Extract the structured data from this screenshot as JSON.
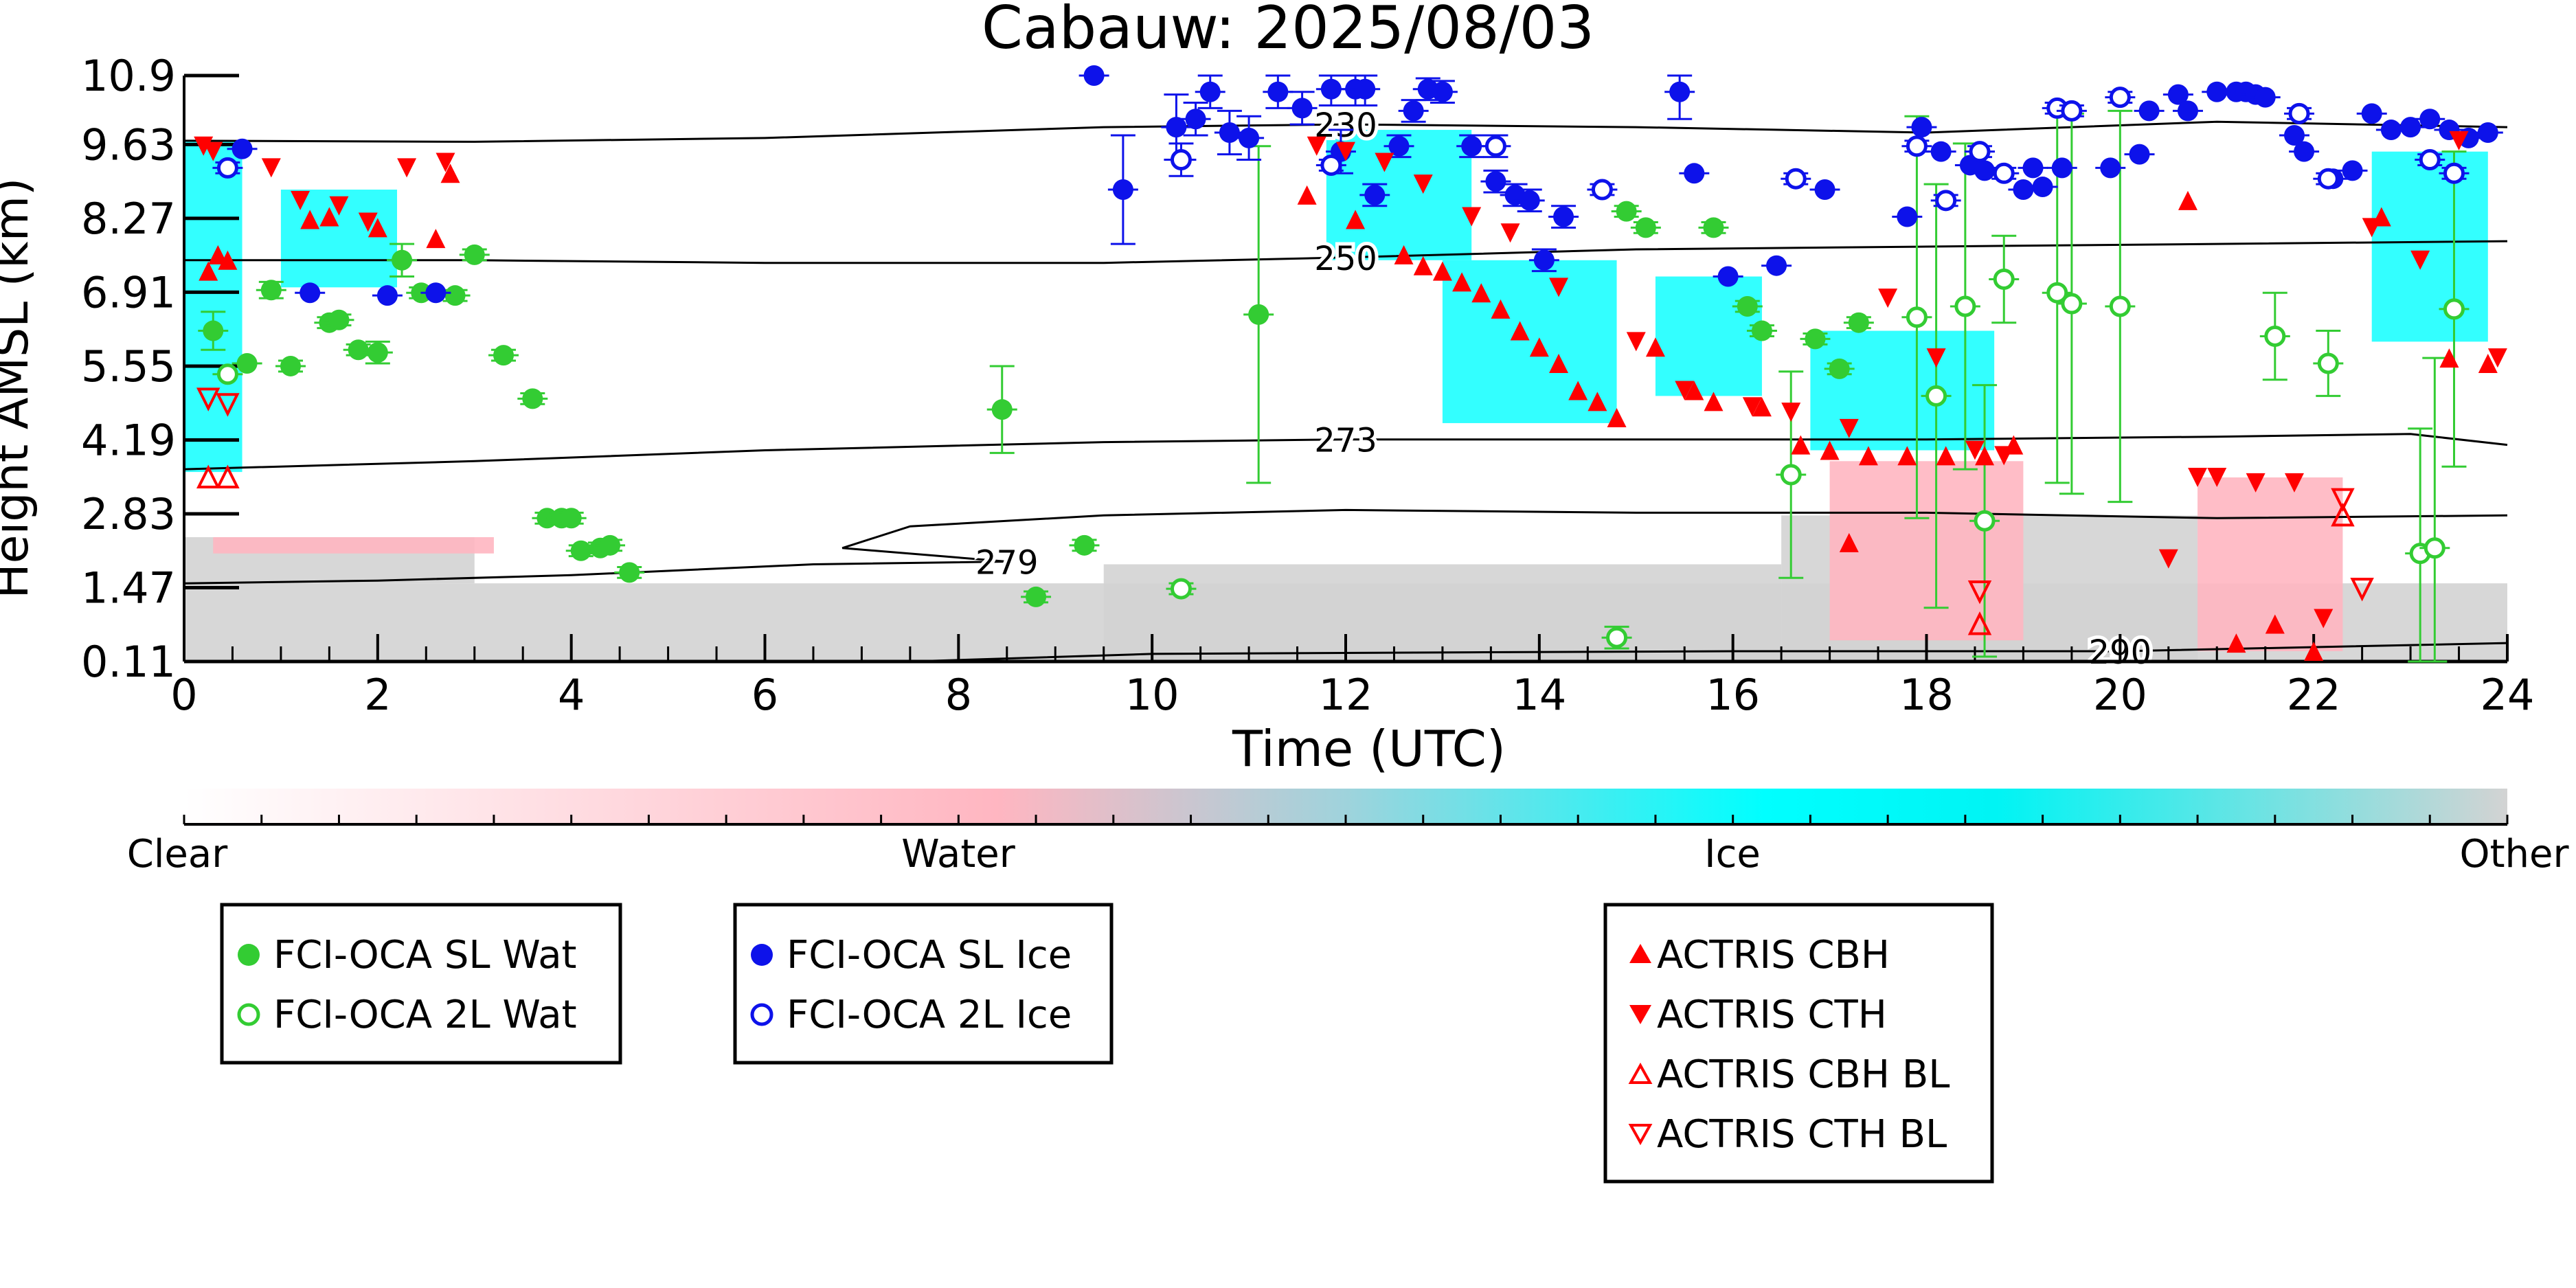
{
  "chart_data": {
    "type": "scatter",
    "title": "Cabauw: 2025/08/03",
    "xlabel": "Time (UTC)",
    "ylabel": "Height AMSL (km)",
    "xlim": [
      0,
      24
    ],
    "ylim": [
      0.11,
      10.9
    ],
    "x_ticks": [
      "0",
      "2",
      "4",
      "6",
      "8",
      "10",
      "12",
      "14",
      "16",
      "18",
      "20",
      "22",
      "24"
    ],
    "y_ticks": [
      "0.11",
      "1.47",
      "2.83",
      "4.19",
      "5.55",
      "6.91",
      "8.27",
      "9.63",
      "10.9"
    ],
    "colorbar": {
      "labels": [
        "Clear",
        "Water",
        "Ice",
        "Other"
      ],
      "colors": [
        "#ffffff",
        "#ffb6c1",
        "#00ffff",
        "#d3d3d3"
      ]
    },
    "contours": [
      {
        "label": "230",
        "points": [
          [
            0,
            9.7
          ],
          [
            3,
            9.68
          ],
          [
            6,
            9.75
          ],
          [
            9.5,
            9.95
          ],
          [
            12,
            10.0
          ],
          [
            15,
            9.95
          ],
          [
            18,
            9.85
          ],
          [
            21,
            10.05
          ],
          [
            24,
            9.95
          ]
        ]
      },
      {
        "label": "250",
        "points": [
          [
            0,
            7.5
          ],
          [
            3,
            7.5
          ],
          [
            6,
            7.45
          ],
          [
            9.5,
            7.45
          ],
          [
            12,
            7.55
          ],
          [
            15,
            7.7
          ],
          [
            18,
            7.75
          ],
          [
            21,
            7.8
          ],
          [
            24,
            7.85
          ]
        ]
      },
      {
        "label": "273",
        "points": [
          [
            0,
            3.65
          ],
          [
            3,
            3.8
          ],
          [
            6,
            4.0
          ],
          [
            9.5,
            4.15
          ],
          [
            12,
            4.2
          ],
          [
            15,
            4.2
          ],
          [
            18,
            4.2
          ],
          [
            21,
            4.25
          ],
          [
            23,
            4.3
          ],
          [
            24,
            4.1
          ]
        ]
      },
      {
        "label": "279",
        "points": [
          [
            0,
            1.55
          ],
          [
            2,
            1.6
          ],
          [
            4,
            1.7
          ],
          [
            6.5,
            1.9
          ],
          [
            8.5,
            1.95
          ],
          [
            6.8,
            2.2
          ],
          [
            7.5,
            2.6
          ],
          [
            9.5,
            2.8
          ],
          [
            12,
            2.9
          ],
          [
            15,
            2.85
          ],
          [
            18,
            2.85
          ],
          [
            21,
            2.75
          ],
          [
            24,
            2.8
          ]
        ]
      },
      {
        "label": "290",
        "points": [
          [
            7.5,
            0.11
          ],
          [
            10,
            0.25
          ],
          [
            13.3,
            0.28
          ],
          [
            16,
            0.3
          ],
          [
            20,
            0.3
          ],
          [
            24,
            0.45
          ]
        ]
      }
    ],
    "series": [
      {
        "name": "FCI-OCA SL Wat",
        "color": "#33cc33",
        "marker": "circle-filled",
        "x": [
          0.3,
          0.65,
          0.9,
          1.1,
          1.5,
          1.6,
          1.8,
          2.0,
          2.25,
          2.45,
          2.8,
          3.0,
          3.3,
          3.6,
          3.75,
          3.9,
          4.0,
          4.1,
          4.3,
          4.4,
          4.6,
          8.45,
          8.8,
          9.3,
          11.1,
          14.9,
          15.1,
          15.8,
          16.15,
          16.3,
          16.85,
          17.1,
          17.3
        ],
        "y": [
          6.2,
          5.6,
          6.95,
          5.55,
          6.35,
          6.4,
          5.85,
          5.8,
          7.5,
          6.9,
          6.85,
          7.6,
          5.75,
          4.95,
          2.75,
          2.75,
          2.75,
          2.15,
          2.2,
          2.25,
          1.75,
          4.75,
          1.3,
          2.25,
          6.5,
          8.4,
          8.1,
          8.1,
          6.65,
          6.2,
          6.05,
          5.5,
          6.35
        ],
        "yerr": [
          0.35,
          0,
          0.15,
          0.1,
          0.1,
          0.1,
          0.1,
          0.2,
          0.3,
          0.1,
          0.1,
          0.1,
          0.1,
          0.1,
          0.1,
          0.1,
          0.1,
          0.1,
          0.1,
          0.1,
          0.1,
          0.8,
          0.1,
          0.1,
          3.1,
          0.1,
          0.1,
          0.1,
          0.1,
          0.1,
          0.1,
          0.1,
          0.1
        ]
      },
      {
        "name": "FCI-OCA 2L Wat",
        "color": "#33cc33",
        "marker": "circle-open",
        "x": [
          0.45,
          10.3,
          14.8,
          16.6,
          17.9,
          18.1,
          18.4,
          18.6,
          18.8,
          19.35,
          19.5,
          20.0,
          21.6,
          22.15,
          23.1,
          23.25,
          23.45
        ],
        "y": [
          5.4,
          1.45,
          0.55,
          3.55,
          6.45,
          5.0,
          6.65,
          2.7,
          7.15,
          6.9,
          6.7,
          6.65,
          6.1,
          5.6,
          2.1,
          2.2,
          6.6
        ],
        "yerr": [
          0,
          0.1,
          0.2,
          1.9,
          3.7,
          3.9,
          3.0,
          2.5,
          0.8,
          3.5,
          3.5,
          3.6,
          0.8,
          0.6,
          2.3,
          3.5,
          2.9
        ]
      },
      {
        "name": "FCI-OCA SL Ice",
        "color": "#0d12ea",
        "marker": "circle-filled",
        "x": [
          0.6,
          1.3,
          2.1,
          2.6,
          9.4,
          9.7,
          10.25,
          10.45,
          10.6,
          10.8,
          11.0,
          11.3,
          11.55,
          11.85,
          11.95,
          12.1,
          12.2,
          12.3,
          12.55,
          12.7,
          12.85,
          13.0,
          13.3,
          13.55,
          13.75,
          13.9,
          14.05,
          14.25,
          15.45,
          15.6,
          15.95,
          16.45,
          16.95,
          17.8,
          17.95,
          18.15,
          18.45,
          18.6,
          19.0,
          19.1,
          19.2,
          19.4,
          19.9,
          20.2,
          20.3,
          20.6,
          20.7,
          21.0,
          21.2,
          21.3,
          21.4,
          21.5,
          21.8,
          21.9,
          22.2,
          22.4,
          22.6,
          22.8,
          23.0,
          23.2,
          23.4,
          23.6,
          23.8
        ],
        "y": [
          9.55,
          6.9,
          6.85,
          6.9,
          10.9,
          8.8,
          9.95,
          10.1,
          10.6,
          9.85,
          9.75,
          10.6,
          10.3,
          10.65,
          9.5,
          10.65,
          10.65,
          8.7,
          9.6,
          10.25,
          10.65,
          10.6,
          9.6,
          8.95,
          8.7,
          8.6,
          7.5,
          8.3,
          10.6,
          9.1,
          7.2,
          7.4,
          8.8,
          8.3,
          9.95,
          9.5,
          9.25,
          9.15,
          8.8,
          9.2,
          8.85,
          9.2,
          9.2,
          9.45,
          10.25,
          10.55,
          10.25,
          10.6,
          10.6,
          10.6,
          10.55,
          10.5,
          9.8,
          9.5,
          9.0,
          9.15,
          10.2,
          9.9,
          9.95,
          10.1,
          9.9,
          9.75,
          9.85
        ],
        "yerr": [
          0,
          0,
          0,
          0,
          0,
          1.0,
          0.6,
          0.3,
          0.3,
          0.4,
          0.4,
          0.3,
          0.3,
          0.3,
          0.4,
          0.3,
          0.3,
          0.2,
          0.2,
          0.2,
          0.2,
          0.2,
          0.2,
          0.2,
          0.2,
          0.2,
          0.2,
          0.2,
          0.5,
          0,
          0,
          0,
          0,
          0,
          0,
          0,
          0,
          0,
          0,
          0,
          0,
          0,
          0,
          0,
          0,
          0,
          0,
          0,
          0,
          0,
          0,
          0,
          0,
          0,
          0,
          0,
          0,
          0,
          0,
          0,
          0,
          0,
          0
        ]
      },
      {
        "name": "FCI-OCA 2L Ice",
        "color": "#0d12ea",
        "marker": "circle-open",
        "x": [
          0.45,
          10.3,
          11.85,
          13.55,
          14.65,
          16.65,
          17.9,
          18.2,
          18.55,
          18.8,
          19.35,
          19.5,
          20.0,
          21.85,
          22.15,
          23.2,
          23.45
        ],
        "y": [
          9.2,
          9.35,
          9.25,
          9.6,
          8.8,
          9.0,
          9.6,
          8.6,
          9.5,
          9.1,
          10.3,
          10.25,
          10.5,
          10.2,
          9.0,
          9.35,
          9.1
        ],
        "yerr": [
          0.1,
          0.3,
          0.1,
          0.2,
          0.1,
          0.1,
          0.1,
          0.1,
          0.1,
          0.1,
          0.1,
          0.1,
          0.1,
          0.1,
          0.1,
          0.1,
          0.1
        ]
      }
    ],
    "actris": [
      {
        "name": "ACTRIS CBH",
        "color": "#ff0000",
        "marker": "triangle-up-filled"
      },
      {
        "name": "ACTRIS CTH",
        "color": "#ff0000",
        "marker": "triangle-down-filled"
      },
      {
        "name": "ACTRIS CBH BL",
        "color": "#ff0000",
        "marker": "triangle-up-open"
      },
      {
        "name": "ACTRIS CTH BL",
        "color": "#ff0000",
        "marker": "triangle-down-open"
      }
    ],
    "actris_points": {
      "cbh": [
        [
          0.25,
          7.3
        ],
        [
          0.35,
          7.6
        ],
        [
          0.45,
          7.5
        ],
        [
          1.3,
          8.25
        ],
        [
          1.5,
          8.3
        ],
        [
          2.0,
          8.1
        ],
        [
          2.6,
          7.9
        ],
        [
          2.75,
          9.1
        ],
        [
          11.6,
          8.7
        ],
        [
          12.1,
          8.25
        ],
        [
          12.6,
          7.6
        ],
        [
          12.8,
          7.4
        ],
        [
          13.0,
          7.3
        ],
        [
          13.2,
          7.1
        ],
        [
          13.4,
          6.9
        ],
        [
          13.6,
          6.6
        ],
        [
          13.8,
          6.2
        ],
        [
          14.0,
          5.9
        ],
        [
          14.2,
          5.6
        ],
        [
          14.4,
          5.1
        ],
        [
          14.6,
          4.9
        ],
        [
          14.8,
          4.6
        ],
        [
          15.2,
          5.9
        ],
        [
          15.6,
          5.1
        ],
        [
          15.8,
          4.9
        ],
        [
          16.3,
          4.8
        ],
        [
          16.7,
          4.1
        ],
        [
          17.0,
          4.0
        ],
        [
          17.4,
          3.9
        ],
        [
          17.8,
          3.9
        ],
        [
          18.2,
          3.9
        ],
        [
          18.6,
          3.9
        ],
        [
          18.9,
          4.1
        ],
        [
          17.2,
          2.3
        ],
        [
          20.7,
          8.6
        ],
        [
          21.2,
          0.45
        ],
        [
          21.6,
          0.8
        ],
        [
          22.0,
          0.3
        ],
        [
          22.7,
          8.3
        ],
        [
          23.4,
          5.7
        ],
        [
          23.8,
          5.6
        ]
      ],
      "cth": [
        [
          0.2,
          9.6
        ],
        [
          0.3,
          9.5
        ],
        [
          0.9,
          9.2
        ],
        [
          1.2,
          8.6
        ],
        [
          1.6,
          8.5
        ],
        [
          1.9,
          8.2
        ],
        [
          2.3,
          9.2
        ],
        [
          2.7,
          9.3
        ],
        [
          11.7,
          9.6
        ],
        [
          12.0,
          9.5
        ],
        [
          12.4,
          9.3
        ],
        [
          12.8,
          8.9
        ],
        [
          13.3,
          8.3
        ],
        [
          13.7,
          8.0
        ],
        [
          14.2,
          7.0
        ],
        [
          15.0,
          6.0
        ],
        [
          15.5,
          5.1
        ],
        [
          16.2,
          4.8
        ],
        [
          16.6,
          4.7
        ],
        [
          17.2,
          4.4
        ],
        [
          17.6,
          6.8
        ],
        [
          18.1,
          5.7
        ],
        [
          18.5,
          4.0
        ],
        [
          18.8,
          3.9
        ],
        [
          20.5,
          2.0
        ],
        [
          20.8,
          3.5
        ],
        [
          21.0,
          3.5
        ],
        [
          21.4,
          3.4
        ],
        [
          21.8,
          3.4
        ],
        [
          22.1,
          0.9
        ],
        [
          22.6,
          8.1
        ],
        [
          23.1,
          7.5
        ],
        [
          23.5,
          9.7
        ],
        [
          23.9,
          5.7
        ]
      ],
      "cbh_bl": [
        [
          0.25,
          3.5
        ],
        [
          0.45,
          3.5
        ],
        [
          18.55,
          0.8
        ],
        [
          22.3,
          2.8
        ]
      ],
      "cth_bl": [
        [
          0.25,
          4.95
        ],
        [
          0.45,
          4.85
        ],
        [
          18.55,
          1.4
        ],
        [
          22.3,
          3.1
        ],
        [
          22.5,
          1.45
        ]
      ]
    },
    "legend_placement": "below-plot"
  }
}
